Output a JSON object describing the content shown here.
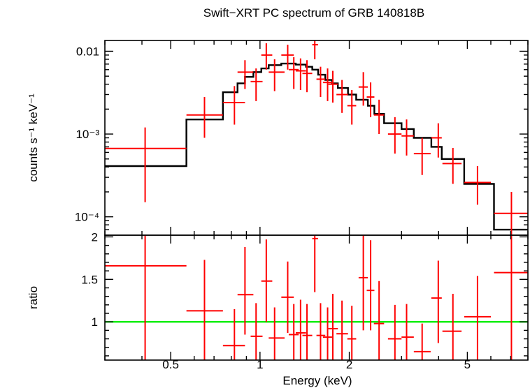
{
  "chart_data": [
    {
      "type": "scatter",
      "title": "Swift−XRT PC spectrum of GRB 140818B",
      "ylabel": "counts s⁻¹ keV⁻¹",
      "y_scale": "log",
      "x_scale": "log",
      "xlim": [
        0.3,
        8.0
      ],
      "ylim": [
        6e-05,
        0.0135
      ],
      "ytick_labels": [
        "0.01",
        "10⁻³",
        "10⁻⁴"
      ],
      "ytick_values": [
        0.01,
        0.001,
        0.0001
      ],
      "colors": {
        "data": "#ff0000",
        "model": "#000000"
      },
      "series": [
        {
          "kind": "data",
          "points": [
            {
              "x": 0.41,
              "xlo": 0.3,
              "xhi": 0.565,
              "y": 0.00067,
              "ylo": 0.00015,
              "yhi": 0.0012
            },
            {
              "x": 0.65,
              "xlo": 0.565,
              "xhi": 0.75,
              "y": 0.0017,
              "ylo": 0.0009,
              "yhi": 0.0028
            },
            {
              "x": 0.82,
              "xlo": 0.75,
              "xhi": 0.89,
              "y": 0.0024,
              "ylo": 0.0013,
              "yhi": 0.0038
            },
            {
              "x": 0.89,
              "xlo": 0.84,
              "xhi": 0.95,
              "y": 0.0056,
              "ylo": 0.0035,
              "yhi": 0.0078
            },
            {
              "x": 0.97,
              "xlo": 0.93,
              "xhi": 1.02,
              "y": 0.0043,
              "ylo": 0.0025,
              "yhi": 0.0062
            },
            {
              "x": 1.05,
              "xlo": 1.01,
              "xhi": 1.1,
              "y": 0.009,
              "ylo": 0.006,
              "yhi": 0.0125
            },
            {
              "x": 1.12,
              "xlo": 1.07,
              "xhi": 1.21,
              "y": 0.0056,
              "ylo": 0.0033,
              "yhi": 0.008
            },
            {
              "x": 1.24,
              "xlo": 1.18,
              "xhi": 1.3,
              "y": 0.009,
              "ylo": 0.006,
              "yhi": 0.012
            },
            {
              "x": 1.3,
              "xlo": 1.25,
              "xhi": 1.35,
              "y": 0.006,
              "ylo": 0.0035,
              "yhi": 0.0085
            },
            {
              "x": 1.37,
              "xlo": 1.32,
              "xhi": 1.43,
              "y": 0.0058,
              "ylo": 0.0034,
              "yhi": 0.0082
            },
            {
              "x": 1.44,
              "xlo": 1.39,
              "xhi": 1.5,
              "y": 0.0054,
              "ylo": 0.0032,
              "yhi": 0.0078
            },
            {
              "x": 1.53,
              "xlo": 1.5,
              "xhi": 1.57,
              "y": 0.012,
              "ylo": 0.008,
              "yhi": 0.014
            },
            {
              "x": 1.6,
              "xlo": 1.55,
              "xhi": 1.66,
              "y": 0.0046,
              "ylo": 0.0028,
              "yhi": 0.0065
            },
            {
              "x": 1.69,
              "xlo": 1.63,
              "xhi": 1.75,
              "y": 0.0042,
              "ylo": 0.0025,
              "yhi": 0.0062
            },
            {
              "x": 1.76,
              "xlo": 1.7,
              "xhi": 1.83,
              "y": 0.004,
              "ylo": 0.0024,
              "yhi": 0.0058
            },
            {
              "x": 1.89,
              "xlo": 1.81,
              "xhi": 1.98,
              "y": 0.003,
              "ylo": 0.0018,
              "yhi": 0.0045
            },
            {
              "x": 2.04,
              "xlo": 1.97,
              "xhi": 2.11,
              "y": 0.0022,
              "ylo": 0.0013,
              "yhi": 0.0034
            },
            {
              "x": 2.23,
              "xlo": 2.15,
              "xhi": 2.31,
              "y": 0.0037,
              "ylo": 0.0022,
              "yhi": 0.0056
            },
            {
              "x": 2.36,
              "xlo": 2.29,
              "xhi": 2.43,
              "y": 0.0028,
              "ylo": 0.0016,
              "yhi": 0.0042
            },
            {
              "x": 2.52,
              "xlo": 2.42,
              "xhi": 2.62,
              "y": 0.0017,
              "ylo": 0.001,
              "yhi": 0.0026
            },
            {
              "x": 2.85,
              "xlo": 2.7,
              "xhi": 3.0,
              "y": 0.001,
              "ylo": 0.00058,
              "yhi": 0.0016
            },
            {
              "x": 3.12,
              "xlo": 3.0,
              "xhi": 3.3,
              "y": 0.00095,
              "ylo": 0.00055,
              "yhi": 0.0015
            },
            {
              "x": 3.52,
              "xlo": 3.3,
              "xhi": 3.76,
              "y": 0.00058,
              "ylo": 0.00032,
              "yhi": 0.0009
            },
            {
              "x": 3.99,
              "xlo": 3.78,
              "xhi": 4.1,
              "y": 0.0009,
              "ylo": 0.00052,
              "yhi": 0.00135
            },
            {
              "x": 4.47,
              "xlo": 4.12,
              "xhi": 4.78,
              "y": 0.00044,
              "ylo": 0.00025,
              "yhi": 0.00068
            },
            {
              "x": 5.41,
              "xlo": 4.88,
              "xhi": 6.0,
              "y": 0.00026,
              "ylo": 0.00014,
              "yhi": 0.00041
            },
            {
              "x": 7.04,
              "xlo": 6.15,
              "xhi": 8.0,
              "y": 0.00011,
              "ylo": 6e-05,
              "yhi": 0.0002
            }
          ]
        },
        {
          "kind": "model",
          "steps": [
            {
              "x0": 0.3,
              "x1": 0.565,
              "y": 0.00041
            },
            {
              "x0": 0.565,
              "x1": 0.75,
              "y": 0.0015
            },
            {
              "x0": 0.75,
              "x1": 0.84,
              "y": 0.0032
            },
            {
              "x0": 0.84,
              "x1": 0.89,
              "y": 0.0041
            },
            {
              "x0": 0.89,
              "x1": 0.95,
              "y": 0.0049
            },
            {
              "x0": 0.95,
              "x1": 1.01,
              "y": 0.0056
            },
            {
              "x0": 1.01,
              "x1": 1.07,
              "y": 0.0062
            },
            {
              "x0": 1.07,
              "x1": 1.18,
              "y": 0.0068
            },
            {
              "x0": 1.18,
              "x1": 1.32,
              "y": 0.0071
            },
            {
              "x0": 1.32,
              "x1": 1.43,
              "y": 0.0069
            },
            {
              "x0": 1.43,
              "x1": 1.5,
              "y": 0.0065
            },
            {
              "x0": 1.5,
              "x1": 1.57,
              "y": 0.006
            },
            {
              "x0": 1.57,
              "x1": 1.66,
              "y": 0.0052
            },
            {
              "x0": 1.66,
              "x1": 1.75,
              "y": 0.0045
            },
            {
              "x0": 1.75,
              "x1": 1.83,
              "y": 0.0041
            },
            {
              "x0": 1.83,
              "x1": 1.98,
              "y": 0.0036
            },
            {
              "x0": 1.98,
              "x1": 2.11,
              "y": 0.003
            },
            {
              "x0": 2.11,
              "x1": 2.31,
              "y": 0.0026
            },
            {
              "x0": 2.31,
              "x1": 2.43,
              "y": 0.0022
            },
            {
              "x0": 2.43,
              "x1": 2.62,
              "y": 0.00175
            },
            {
              "x0": 2.62,
              "x1": 3.0,
              "y": 0.00135
            },
            {
              "x0": 3.0,
              "x1": 3.3,
              "y": 0.00115
            },
            {
              "x0": 3.3,
              "x1": 3.78,
              "y": 0.0009
            },
            {
              "x0": 3.78,
              "x1": 4.1,
              "y": 0.0007
            },
            {
              "x0": 4.1,
              "x1": 4.88,
              "y": 0.0005
            },
            {
              "x0": 4.88,
              "x1": 6.15,
              "y": 0.00025
            },
            {
              "x0": 6.15,
              "x1": 8.0,
              "y": 7e-05
            }
          ]
        }
      ]
    },
    {
      "type": "scatter",
      "ylabel": "ratio",
      "xlabel": "Energy (keV)",
      "x_scale": "log",
      "xlim": [
        0.3,
        8.0
      ],
      "ylim": [
        0.55,
        2.02
      ],
      "xtick_labels": [
        "0.5",
        "1",
        "2",
        "5"
      ],
      "xtick_values": [
        0.5,
        1,
        2,
        5
      ],
      "ytick_labels": [
        "2",
        "1.5",
        "1"
      ],
      "ytick_values": [
        2,
        1.5,
        1
      ],
      "reference_line": 1.0,
      "colors": {
        "data": "#ff0000",
        "reference": "#00ee00"
      },
      "series": [
        {
          "kind": "data",
          "points": [
            {
              "x": 0.41,
              "xlo": 0.3,
              "xhi": 0.565,
              "y": 1.66,
              "ylo": 0.55,
              "yhi": 2.02
            },
            {
              "x": 0.65,
              "xlo": 0.565,
              "xhi": 0.75,
              "y": 1.13,
              "ylo": 0.55,
              "yhi": 1.73
            },
            {
              "x": 0.82,
              "xlo": 0.75,
              "xhi": 0.89,
              "y": 0.72,
              "ylo": 0.55,
              "yhi": 1.15
            },
            {
              "x": 0.89,
              "xlo": 0.84,
              "xhi": 0.95,
              "y": 1.32,
              "ylo": 0.85,
              "yhi": 1.88
            },
            {
              "x": 0.97,
              "xlo": 0.93,
              "xhi": 1.02,
              "y": 0.83,
              "ylo": 0.55,
              "yhi": 1.22
            },
            {
              "x": 1.05,
              "xlo": 1.01,
              "xhi": 1.1,
              "y": 1.48,
              "ylo": 1.0,
              "yhi": 1.97
            },
            {
              "x": 1.12,
              "xlo": 1.07,
              "xhi": 1.21,
              "y": 0.81,
              "ylo": 0.55,
              "yhi": 1.17
            },
            {
              "x": 1.24,
              "xlo": 1.18,
              "xhi": 1.3,
              "y": 1.29,
              "ylo": 0.87,
              "yhi": 1.71
            },
            {
              "x": 1.3,
              "xlo": 1.25,
              "xhi": 1.35,
              "y": 0.85,
              "ylo": 0.55,
              "yhi": 1.21
            },
            {
              "x": 1.37,
              "xlo": 1.32,
              "xhi": 1.43,
              "y": 0.87,
              "ylo": 0.55,
              "yhi": 1.26
            },
            {
              "x": 1.44,
              "xlo": 1.39,
              "xhi": 1.5,
              "y": 0.84,
              "ylo": 0.55,
              "yhi": 1.21
            },
            {
              "x": 1.53,
              "xlo": 1.5,
              "xhi": 1.57,
              "y": 1.98,
              "ylo": 1.35,
              "yhi": 2.02
            },
            {
              "x": 1.6,
              "xlo": 1.55,
              "xhi": 1.66,
              "y": 0.84,
              "ylo": 0.55,
              "yhi": 1.22
            },
            {
              "x": 1.69,
              "xlo": 1.63,
              "xhi": 1.75,
              "y": 0.82,
              "ylo": 0.55,
              "yhi": 1.17
            },
            {
              "x": 1.76,
              "xlo": 1.7,
              "xhi": 1.83,
              "y": 0.92,
              "ylo": 0.55,
              "yhi": 1.33
            },
            {
              "x": 1.89,
              "xlo": 1.81,
              "xhi": 1.98,
              "y": 0.86,
              "ylo": 0.55,
              "yhi": 1.25
            },
            {
              "x": 2.04,
              "xlo": 1.97,
              "xhi": 2.11,
              "y": 0.8,
              "ylo": 0.55,
              "yhi": 1.19
            },
            {
              "x": 2.23,
              "xlo": 2.15,
              "xhi": 2.31,
              "y": 1.52,
              "ylo": 0.9,
              "yhi": 2.02
            },
            {
              "x": 2.36,
              "xlo": 2.29,
              "xhi": 2.43,
              "y": 1.37,
              "ylo": 0.9,
              "yhi": 1.96
            },
            {
              "x": 2.52,
              "xlo": 2.42,
              "xhi": 2.62,
              "y": 0.98,
              "ylo": 0.55,
              "yhi": 1.48
            },
            {
              "x": 2.85,
              "xlo": 2.7,
              "xhi": 3.0,
              "y": 0.8,
              "ylo": 0.55,
              "yhi": 1.2
            },
            {
              "x": 3.12,
              "xlo": 3.0,
              "xhi": 3.3,
              "y": 0.82,
              "ylo": 0.55,
              "yhi": 1.21
            },
            {
              "x": 3.52,
              "xlo": 3.3,
              "xhi": 3.76,
              "y": 0.65,
              "ylo": 0.55,
              "yhi": 0.98
            },
            {
              "x": 3.99,
              "xlo": 3.78,
              "xhi": 4.1,
              "y": 1.28,
              "ylo": 0.75,
              "yhi": 1.72
            },
            {
              "x": 4.47,
              "xlo": 4.12,
              "xhi": 4.78,
              "y": 0.89,
              "ylo": 0.55,
              "yhi": 1.33
            },
            {
              "x": 5.41,
              "xlo": 4.88,
              "xhi": 6.0,
              "y": 1.06,
              "ylo": 0.55,
              "yhi": 1.54
            },
            {
              "x": 7.04,
              "xlo": 6.15,
              "xhi": 8.0,
              "y": 1.58,
              "ylo": 0.55,
              "yhi": 2.02
            }
          ]
        }
      ]
    }
  ]
}
